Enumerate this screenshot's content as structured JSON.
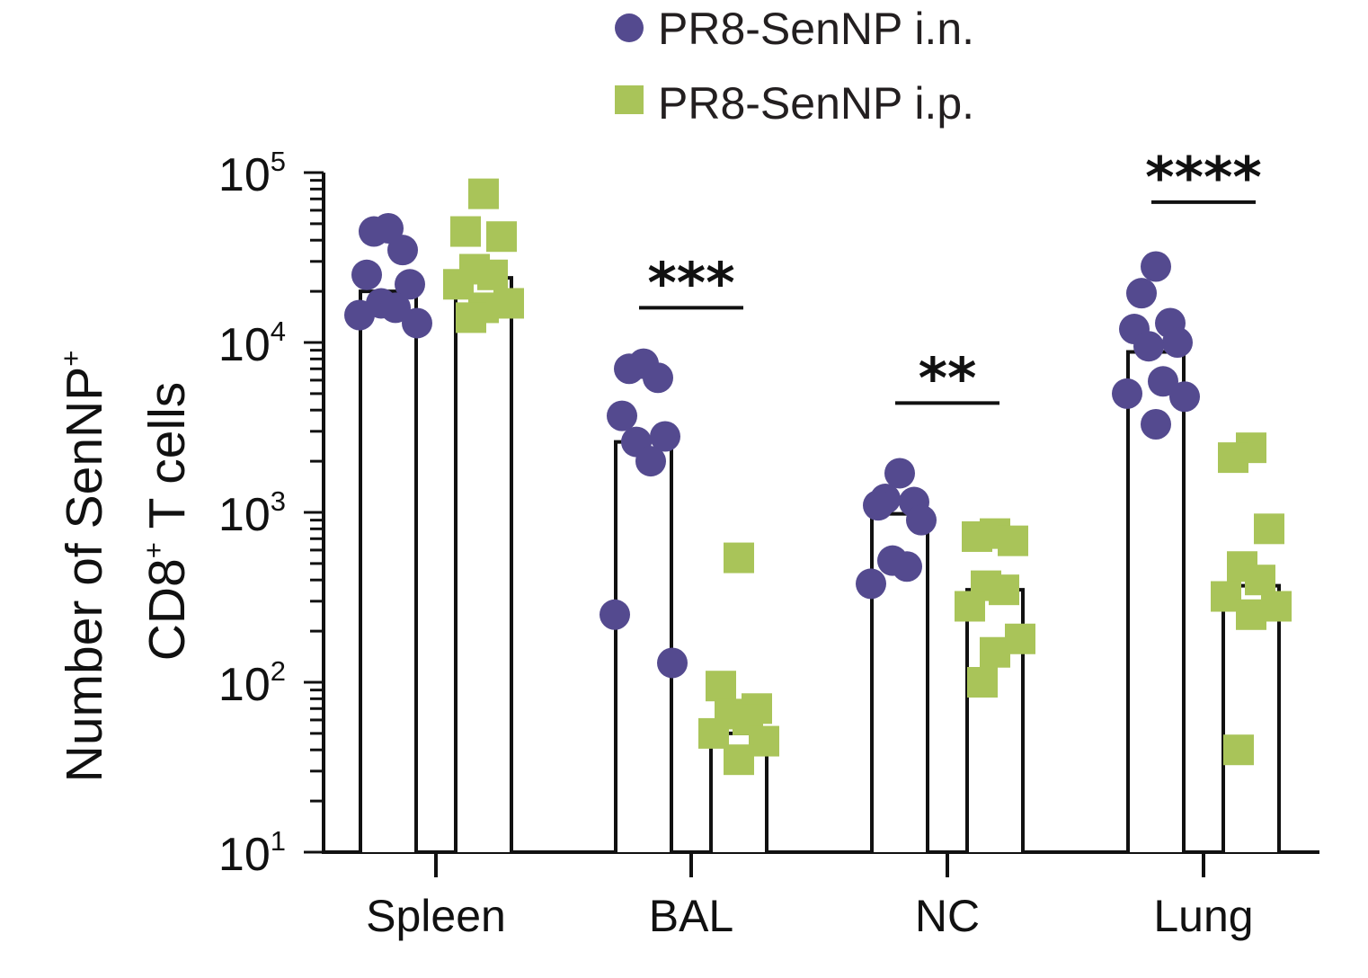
{
  "chart_data": {
    "type": "bar",
    "scale": "log",
    "ylim": [
      10,
      100000
    ],
    "ytick_values": [
      10,
      100,
      1000,
      10000,
      100000
    ],
    "ytick_labels": [
      {
        "base": "10",
        "exp": "1"
      },
      {
        "base": "10",
        "exp": "2"
      },
      {
        "base": "10",
        "exp": "3"
      },
      {
        "base": "10",
        "exp": "4"
      },
      {
        "base": "10",
        "exp": "5"
      }
    ],
    "ylabel_line1": {
      "text": "Number of SenNP",
      "sup": "+"
    },
    "ylabel_line2": {
      "pre": "CD8",
      "sup": "+",
      "post": " T cells"
    },
    "categories": [
      "Spleen",
      "BAL",
      "NC",
      "Lung"
    ],
    "series": [
      {
        "name": "PR8-SenNP i.n.",
        "marker": "circle",
        "color": "#544a8f",
        "bars": [
          20000,
          2600,
          980,
          8800
        ],
        "points": [
          [
            47000,
            45000,
            35000,
            25000,
            22000,
            17000,
            16000,
            14500,
            13000
          ],
          [
            7500,
            7000,
            6200,
            3700,
            2800,
            2600,
            2000,
            250,
            130
          ],
          [
            1700,
            1200,
            1150,
            1100,
            900,
            520,
            480,
            380
          ],
          [
            28000,
            19500,
            13000,
            12000,
            10000,
            9500,
            5900,
            5000,
            4800,
            3300
          ]
        ]
      },
      {
        "name": "PR8-SenNP i.p.",
        "marker": "square",
        "color": "#a9c459",
        "bars": [
          24000,
          50,
          350,
          370
        ],
        "points": [
          [
            75000,
            45000,
            42000,
            27000,
            25000,
            22000,
            17000,
            16000,
            14000
          ],
          [
            540,
            95,
            70,
            65,
            60,
            50,
            45,
            35
          ],
          [
            750,
            720,
            680,
            370,
            350,
            280,
            180,
            150,
            100
          ],
          [
            2400,
            2100,
            800,
            480,
            400,
            320,
            280,
            250,
            40
          ]
        ]
      }
    ],
    "significance": [
      {
        "category": "BAL",
        "label": "***",
        "at": 16000
      },
      {
        "category": "NC",
        "label": "**",
        "at": 4400
      },
      {
        "category": "Lung",
        "label": "****",
        "at": 67000
      }
    ],
    "legend_position": "top-center",
    "grid": false
  }
}
